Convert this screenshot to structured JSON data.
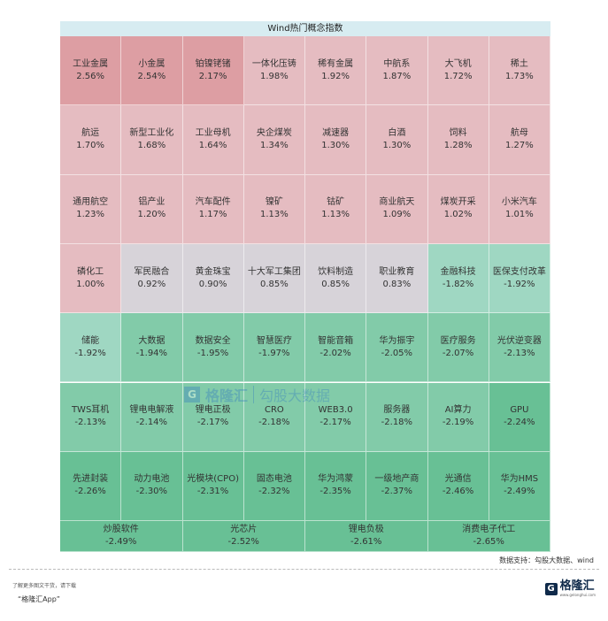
{
  "chart_data": {
    "type": "heatmap",
    "title": "Wind热门概念指数",
    "unit": "%",
    "cells": [
      {
        "name": "工业金属",
        "value": 2.56
      },
      {
        "name": "小金属",
        "value": 2.54
      },
      {
        "name": "铂镍铑锗",
        "value": 2.17
      },
      {
        "name": "一体化压铸",
        "value": 1.98
      },
      {
        "name": "稀有金属",
        "value": 1.92
      },
      {
        "name": "中航系",
        "value": 1.87
      },
      {
        "name": "大飞机",
        "value": 1.72
      },
      {
        "name": "稀土",
        "value": 1.73
      },
      {
        "name": "航运",
        "value": 1.7
      },
      {
        "name": "新型工业化",
        "value": 1.68
      },
      {
        "name": "工业母机",
        "value": 1.64
      },
      {
        "name": "央企煤炭",
        "value": 1.34
      },
      {
        "name": "减速器",
        "value": 1.3
      },
      {
        "name": "白酒",
        "value": 1.3
      },
      {
        "name": "饲料",
        "value": 1.28
      },
      {
        "name": "航母",
        "value": 1.27
      },
      {
        "name": "通用航空",
        "value": 1.23
      },
      {
        "name": "铝产业",
        "value": 1.2
      },
      {
        "name": "汽车配件",
        "value": 1.17
      },
      {
        "name": "镍矿",
        "value": 1.13
      },
      {
        "name": "钴矿",
        "value": 1.13
      },
      {
        "name": "商业航天",
        "value": 1.09
      },
      {
        "name": "煤炭开采",
        "value": 1.02
      },
      {
        "name": "小米汽车",
        "value": 1.01
      },
      {
        "name": "磷化工",
        "value": 1.0
      },
      {
        "name": "军民融合",
        "value": 0.92
      },
      {
        "name": "黄金珠宝",
        "value": 0.9
      },
      {
        "name": "十大军工集团",
        "value": 0.85
      },
      {
        "name": "饮料制造",
        "value": 0.85
      },
      {
        "name": "职业教育",
        "value": 0.83
      },
      {
        "name": "金融科技",
        "value": -1.82
      },
      {
        "name": "医保支付改革",
        "value": -1.92
      },
      {
        "name": "储能",
        "value": -1.92
      },
      {
        "name": "大数据",
        "value": -1.94
      },
      {
        "name": "数据安全",
        "value": -1.95
      },
      {
        "name": "智慧医疗",
        "value": -1.97
      },
      {
        "name": "智能音箱",
        "value": -2.02
      },
      {
        "name": "华为振宇",
        "value": -2.05
      },
      {
        "name": "医疗服务",
        "value": -2.07
      },
      {
        "name": "光伏逆变器",
        "value": -2.13
      },
      {
        "name": "TWS耳机",
        "value": -2.13
      },
      {
        "name": "锂电电解液",
        "value": -2.14
      },
      {
        "name": "锂电正极",
        "value": -2.17
      },
      {
        "name": "CRO",
        "value": -2.18
      },
      {
        "name": "WEB3.0",
        "value": -2.17
      },
      {
        "name": "服务器",
        "value": -2.18
      },
      {
        "name": "AI算力",
        "value": -2.19
      },
      {
        "name": "GPU",
        "value": -2.24
      },
      {
        "name": "先进封装",
        "value": -2.26
      },
      {
        "name": "动力电池",
        "value": -2.3
      },
      {
        "name": "光模块(CPO)",
        "value": -2.31
      },
      {
        "name": "固态电池",
        "value": -2.32
      },
      {
        "name": "华为鸿蒙",
        "value": -2.35
      },
      {
        "name": "一级地产商",
        "value": -2.37
      },
      {
        "name": "光通信",
        "value": -2.46
      },
      {
        "name": "华为HMS",
        "value": -2.49
      },
      {
        "name": "炒股软件",
        "value": -2.49
      },
      {
        "name": "光芯片",
        "value": -2.52
      },
      {
        "name": "锂电负极",
        "value": -2.61
      },
      {
        "name": "消费电子代工",
        "value": -2.65
      }
    ],
    "colors": {
      "strong_up": "#dd9ea3",
      "up": "#e5bcc1",
      "neutral": "#d7d3d9",
      "down_light": "#9fd7c2",
      "down": "#82cba9",
      "down_strong": "#68c095"
    }
  },
  "source": "数据支持：勾股大数据、wind",
  "footer": {
    "line1": "了解更多图文干货，请下载",
    "line2": "“格隆汇App”"
  },
  "logo": {
    "mark": "G",
    "name": "格隆汇",
    "url": "www.gelonghui.com"
  },
  "watermark": {
    "mark": "G",
    "name": "格隆汇",
    "brand": "勾股大数据"
  }
}
